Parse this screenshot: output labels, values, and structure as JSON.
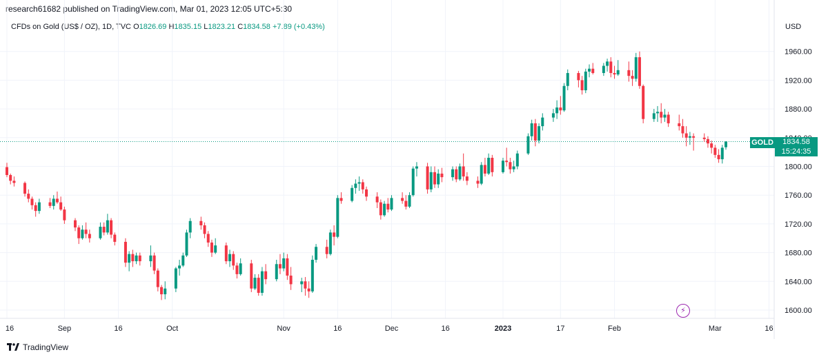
{
  "publisher": "research61682 published on TradingView.com, Mar 01, 2023 12:05 UTC+5:30",
  "symbol": {
    "title": "CFDs on Gold (US$ / OZ), 1D, TVC",
    "open_label": "O",
    "open": "1826.69",
    "high_label": "H",
    "high": "1835.15",
    "low_label": "L",
    "low": "1823.21",
    "close_label": "C",
    "close": "1834.58",
    "change": "+7.89 (+0.43%)"
  },
  "currency": "USD",
  "last_price": {
    "ticker": "GOLD",
    "price": "1834.58",
    "countdown": "15:24:35"
  },
  "footer": {
    "brand": "TradingView"
  },
  "colors": {
    "up": "#089981",
    "down": "#f23645",
    "grid": "#f0f3fa",
    "last_line": "#089981"
  },
  "chart_data": {
    "type": "candlestick",
    "ylim": [
      1585,
      1975
    ],
    "y_ticks": [
      1600,
      1640,
      1680,
      1720,
      1760,
      1800,
      1840,
      1880,
      1920,
      1960
    ],
    "y_tick_labels": [
      "1600.00",
      "1640.00",
      "1680.00",
      "1720.00",
      "1760.00",
      "1800.00",
      "1840.00",
      "1880.00",
      "1920.00",
      "1960.00"
    ],
    "x_ticks": [
      {
        "label": "16",
        "day": 0
      },
      {
        "label": "Sep",
        "day": 16
      },
      {
        "label": "16",
        "day": 31
      },
      {
        "label": "Oct",
        "day": 46
      },
      {
        "label": "Nov",
        "day": 77
      },
      {
        "label": "16",
        "day": 92
      },
      {
        "label": "Dec",
        "day": 107
      },
      {
        "label": "16",
        "day": 122
      },
      {
        "label": "2023",
        "day": 138
      },
      {
        "label": "17",
        "day": 154
      },
      {
        "label": "Feb",
        "day": 169
      },
      {
        "label": "Mar",
        "day": 197
      },
      {
        "label": "16",
        "day": 212
      }
    ],
    "last_price": 1834.58,
    "candles": [
      [
        0,
        1799,
        1805,
        1785,
        1788
      ],
      [
        1,
        1788,
        1790,
        1775,
        1780
      ],
      [
        2,
        1780,
        1786,
        1772,
        1777
      ],
      [
        5,
        1777,
        1779,
        1758,
        1762
      ],
      [
        6,
        1762,
        1768,
        1750,
        1755
      ],
      [
        7,
        1755,
        1758,
        1740,
        1746
      ],
      [
        8,
        1746,
        1750,
        1730,
        1738
      ],
      [
        9,
        1738,
        1755,
        1734,
        1750
      ],
      [
        12,
        1750,
        1756,
        1742,
        1745
      ],
      [
        13,
        1745,
        1760,
        1740,
        1755
      ],
      [
        14,
        1755,
        1765,
        1748,
        1750
      ],
      [
        15,
        1750,
        1758,
        1738,
        1740
      ],
      [
        16,
        1740,
        1744,
        1720,
        1725
      ],
      [
        19,
        1725,
        1728,
        1710,
        1715
      ],
      [
        20,
        1715,
        1718,
        1692,
        1700
      ],
      [
        21,
        1700,
        1718,
        1698,
        1712
      ],
      [
        22,
        1712,
        1722,
        1700,
        1706
      ],
      [
        23,
        1706,
        1712,
        1694,
        1700
      ],
      [
        26,
        1700,
        1722,
        1698,
        1716
      ],
      [
        27,
        1716,
        1722,
        1704,
        1708
      ],
      [
        28,
        1708,
        1734,
        1705,
        1725
      ],
      [
        29,
        1725,
        1728,
        1700,
        1705
      ],
      [
        30,
        1705,
        1708,
        1690,
        1695
      ],
      [
        33,
        1695,
        1700,
        1660,
        1666
      ],
      [
        34,
        1666,
        1682,
        1654,
        1678
      ],
      [
        35,
        1678,
        1684,
        1660,
        1668
      ],
      [
        36,
        1668,
        1680,
        1664,
        1676
      ],
      [
        37,
        1676,
        1680,
        1662,
        1668
      ],
      [
        40,
        1668,
        1690,
        1660,
        1676
      ],
      [
        41,
        1676,
        1680,
        1650,
        1655
      ],
      [
        42,
        1655,
        1658,
        1626,
        1632
      ],
      [
        43,
        1632,
        1635,
        1614,
        1622
      ],
      [
        44,
        1622,
        1640,
        1615,
        1630
      ],
      [
        47,
        1630,
        1660,
        1625,
        1658
      ],
      [
        48,
        1658,
        1670,
        1648,
        1662
      ],
      [
        49,
        1662,
        1680,
        1660,
        1676
      ],
      [
        50,
        1676,
        1712,
        1674,
        1708
      ],
      [
        51,
        1708,
        1728,
        1700,
        1724
      ],
      [
        54,
        1724,
        1730,
        1712,
        1718
      ],
      [
        55,
        1718,
        1722,
        1700,
        1706
      ],
      [
        56,
        1706,
        1710,
        1688,
        1694
      ],
      [
        57,
        1694,
        1698,
        1674,
        1680
      ],
      [
        58,
        1680,
        1700,
        1678,
        1690
      ],
      [
        61,
        1690,
        1694,
        1664,
        1668
      ],
      [
        62,
        1668,
        1684,
        1660,
        1678
      ],
      [
        63,
        1678,
        1682,
        1656,
        1662
      ],
      [
        64,
        1662,
        1666,
        1644,
        1650
      ],
      [
        65,
        1650,
        1672,
        1648,
        1665
      ],
      [
        68,
        1665,
        1670,
        1625,
        1630
      ],
      [
        69,
        1630,
        1650,
        1628,
        1645
      ],
      [
        70,
        1645,
        1650,
        1620,
        1624
      ],
      [
        71,
        1624,
        1660,
        1620,
        1654
      ],
      [
        72,
        1654,
        1664,
        1636,
        1643
      ],
      [
        75,
        1643,
        1670,
        1640,
        1664
      ],
      [
        76,
        1664,
        1678,
        1650,
        1658
      ],
      [
        77,
        1658,
        1680,
        1654,
        1672
      ],
      [
        78,
        1672,
        1678,
        1642,
        1648
      ],
      [
        79,
        1648,
        1660,
        1628,
        1636
      ],
      [
        82,
        1636,
        1645,
        1625,
        1640
      ],
      [
        83,
        1640,
        1646,
        1620,
        1630
      ],
      [
        84,
        1630,
        1640,
        1617,
        1626
      ],
      [
        85,
        1626,
        1676,
        1624,
        1670
      ],
      [
        86,
        1670,
        1692,
        1666,
        1688
      ],
      [
        89,
        1688,
        1698,
        1672,
        1678
      ],
      [
        90,
        1678,
        1712,
        1676,
        1708
      ],
      [
        91,
        1708,
        1718,
        1690,
        1702
      ],
      [
        92,
        1702,
        1760,
        1700,
        1756
      ],
      [
        93,
        1756,
        1764,
        1748,
        1752
      ],
      [
        96,
        1752,
        1774,
        1750,
        1770
      ],
      [
        97,
        1770,
        1782,
        1762,
        1776
      ],
      [
        98,
        1776,
        1786,
        1766,
        1778
      ],
      [
        99,
        1778,
        1782,
        1762,
        1768
      ],
      [
        100,
        1768,
        1772,
        1752,
        1758
      ],
      [
        103,
        1758,
        1764,
        1742,
        1750
      ],
      [
        104,
        1750,
        1754,
        1726,
        1732
      ],
      [
        105,
        1732,
        1752,
        1730,
        1748
      ],
      [
        106,
        1748,
        1756,
        1736,
        1740
      ],
      [
        107,
        1740,
        1760,
        1738,
        1756
      ],
      [
        110,
        1756,
        1764,
        1748,
        1752
      ],
      [
        111,
        1752,
        1760,
        1740,
        1744
      ],
      [
        112,
        1744,
        1764,
        1742,
        1760
      ],
      [
        113,
        1760,
        1800,
        1758,
        1797
      ],
      [
        114,
        1797,
        1806,
        1786,
        1800
      ],
      [
        117,
        1800,
        1805,
        1762,
        1768
      ],
      [
        118,
        1768,
        1800,
        1764,
        1792
      ],
      [
        119,
        1792,
        1800,
        1770,
        1775
      ],
      [
        120,
        1775,
        1796,
        1770,
        1790
      ],
      [
        121,
        1790,
        1798,
        1778,
        1785
      ],
      [
        124,
        1785,
        1800,
        1780,
        1796
      ],
      [
        125,
        1796,
        1800,
        1778,
        1782
      ],
      [
        126,
        1782,
        1804,
        1780,
        1800
      ],
      [
        127,
        1800,
        1818,
        1780,
        1786
      ],
      [
        128,
        1786,
        1792,
        1774,
        1780
      ],
      [
        131,
        1780,
        1786,
        1770,
        1776
      ],
      [
        132,
        1776,
        1806,
        1774,
        1802
      ],
      [
        133,
        1802,
        1812,
        1786,
        1790
      ],
      [
        134,
        1790,
        1818,
        1788,
        1812
      ],
      [
        135,
        1812,
        1816,
        1786,
        1792
      ],
      [
        138,
        1792,
        1812,
        1790,
        1808
      ],
      [
        139,
        1808,
        1826,
        1800,
        1806
      ],
      [
        140,
        1806,
        1812,
        1790,
        1796
      ],
      [
        141,
        1796,
        1808,
        1792,
        1800
      ],
      [
        142,
        1800,
        1822,
        1796,
        1818
      ],
      [
        145,
        1818,
        1846,
        1816,
        1842
      ],
      [
        146,
        1842,
        1865,
        1836,
        1860
      ],
      [
        147,
        1860,
        1866,
        1828,
        1836
      ],
      [
        148,
        1836,
        1860,
        1832,
        1856
      ],
      [
        149,
        1856,
        1874,
        1850,
        1868
      ],
      [
        152,
        1868,
        1880,
        1862,
        1874
      ],
      [
        153,
        1874,
        1892,
        1866,
        1882
      ],
      [
        154,
        1882,
        1898,
        1872,
        1878
      ],
      [
        155,
        1878,
        1916,
        1876,
        1912
      ],
      [
        156,
        1912,
        1935,
        1906,
        1930
      ],
      [
        159,
        1930,
        1933,
        1910,
        1920
      ],
      [
        160,
        1920,
        1926,
        1900,
        1906
      ],
      [
        161,
        1906,
        1936,
        1902,
        1932
      ],
      [
        162,
        1932,
        1942,
        1924,
        1936
      ],
      [
        163,
        1936,
        1944,
        1928,
        1930
      ],
      [
        166,
        1930,
        1944,
        1926,
        1940
      ],
      [
        167,
        1940,
        1950,
        1932,
        1946
      ],
      [
        168,
        1946,
        1952,
        1924,
        1930
      ],
      [
        169,
        1930,
        1940,
        1922,
        1928
      ],
      [
        170,
        1928,
        1948,
        1926,
        1934
      ],
      [
        173,
        1934,
        1946,
        1918,
        1926
      ],
      [
        174,
        1926,
        1934,
        1912,
        1922
      ],
      [
        175,
        1922,
        1958,
        1918,
        1952
      ],
      [
        176,
        1952,
        1960,
        1908,
        1912
      ],
      [
        177,
        1912,
        1914,
        1860,
        1866
      ],
      [
        180,
        1866,
        1880,
        1862,
        1874
      ],
      [
        181,
        1874,
        1884,
        1862,
        1876
      ],
      [
        182,
        1876,
        1888,
        1860,
        1868
      ],
      [
        183,
        1868,
        1880,
        1862,
        1872
      ],
      [
        184,
        1872,
        1876,
        1855,
        1860
      ],
      [
        187,
        1860,
        1872,
        1850,
        1856
      ],
      [
        188,
        1856,
        1866,
        1840,
        1846
      ],
      [
        189,
        1846,
        1856,
        1828,
        1840
      ],
      [
        190,
        1840,
        1848,
        1830,
        1842
      ],
      [
        191,
        1842,
        1846,
        1822,
        1840
      ],
      [
        194,
        1840,
        1846,
        1834,
        1838
      ],
      [
        195,
        1838,
        1842,
        1826,
        1832
      ],
      [
        196,
        1832,
        1836,
        1818,
        1826
      ],
      [
        197,
        1826,
        1830,
        1812,
        1816
      ],
      [
        198,
        1816,
        1824,
        1805,
        1810
      ],
      [
        199,
        1810,
        1830,
        1804,
        1826
      ],
      [
        200,
        1826.69,
        1835.15,
        1823.21,
        1834.58
      ]
    ]
  }
}
